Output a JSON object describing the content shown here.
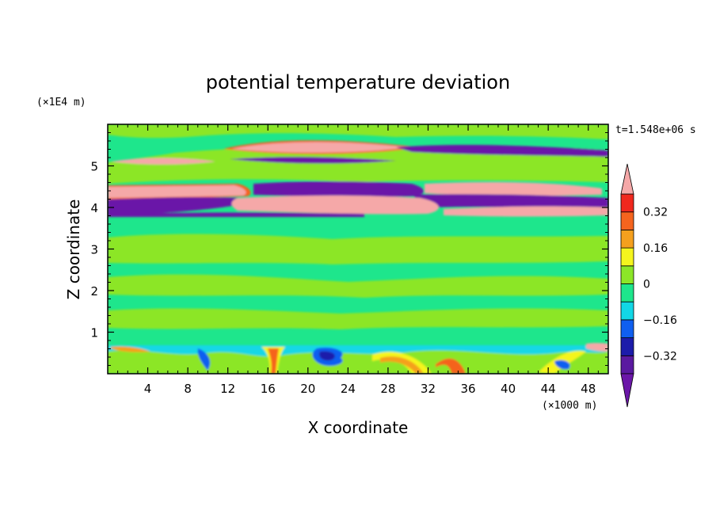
{
  "chart_data": {
    "type": "heatmap",
    "title": "potential temperature deviation",
    "xlabel": "X coordinate",
    "ylabel": "Z coordinate",
    "x_unit": "(×1000 m)",
    "y_unit": "(×1E4 m)",
    "time_label": "t=1.548e+06 s",
    "xlim": [
      0,
      50
    ],
    "ylim": [
      0,
      6
    ],
    "x_ticks": [
      4,
      8,
      12,
      16,
      20,
      24,
      28,
      32,
      36,
      40,
      44,
      48
    ],
    "x_tick_labels": [
      "4",
      "8",
      "12",
      "16",
      "20",
      "24",
      "28",
      "32",
      "36",
      "40",
      "44",
      "48"
    ],
    "y_ticks": [
      1,
      2,
      3,
      4,
      5
    ],
    "y_tick_labels": [
      "1",
      "2",
      "3",
      "4",
      "5"
    ],
    "colorbar": {
      "levels": [
        -0.4,
        -0.32,
        -0.24,
        -0.16,
        -0.08,
        0,
        0.08,
        0.16,
        0.24,
        0.32,
        0.4
      ],
      "labeled_levels": [
        0.32,
        0.16,
        0,
        -0.16,
        -0.32
      ],
      "labels": [
        "0.32",
        "0.16",
        "0",
        "−0.16",
        "−0.32"
      ],
      "colors": [
        "#5a1aa0",
        "#1c1caa",
        "#0f5ff0",
        "#12d7e6",
        "#1ee68c",
        "#8ce628",
        "#f5f51e",
        "#f5a01e",
        "#f5641e",
        "#f0281e"
      ],
      "over_color": "#f5a8a8",
      "under_color": "#6b17a8"
    }
  }
}
